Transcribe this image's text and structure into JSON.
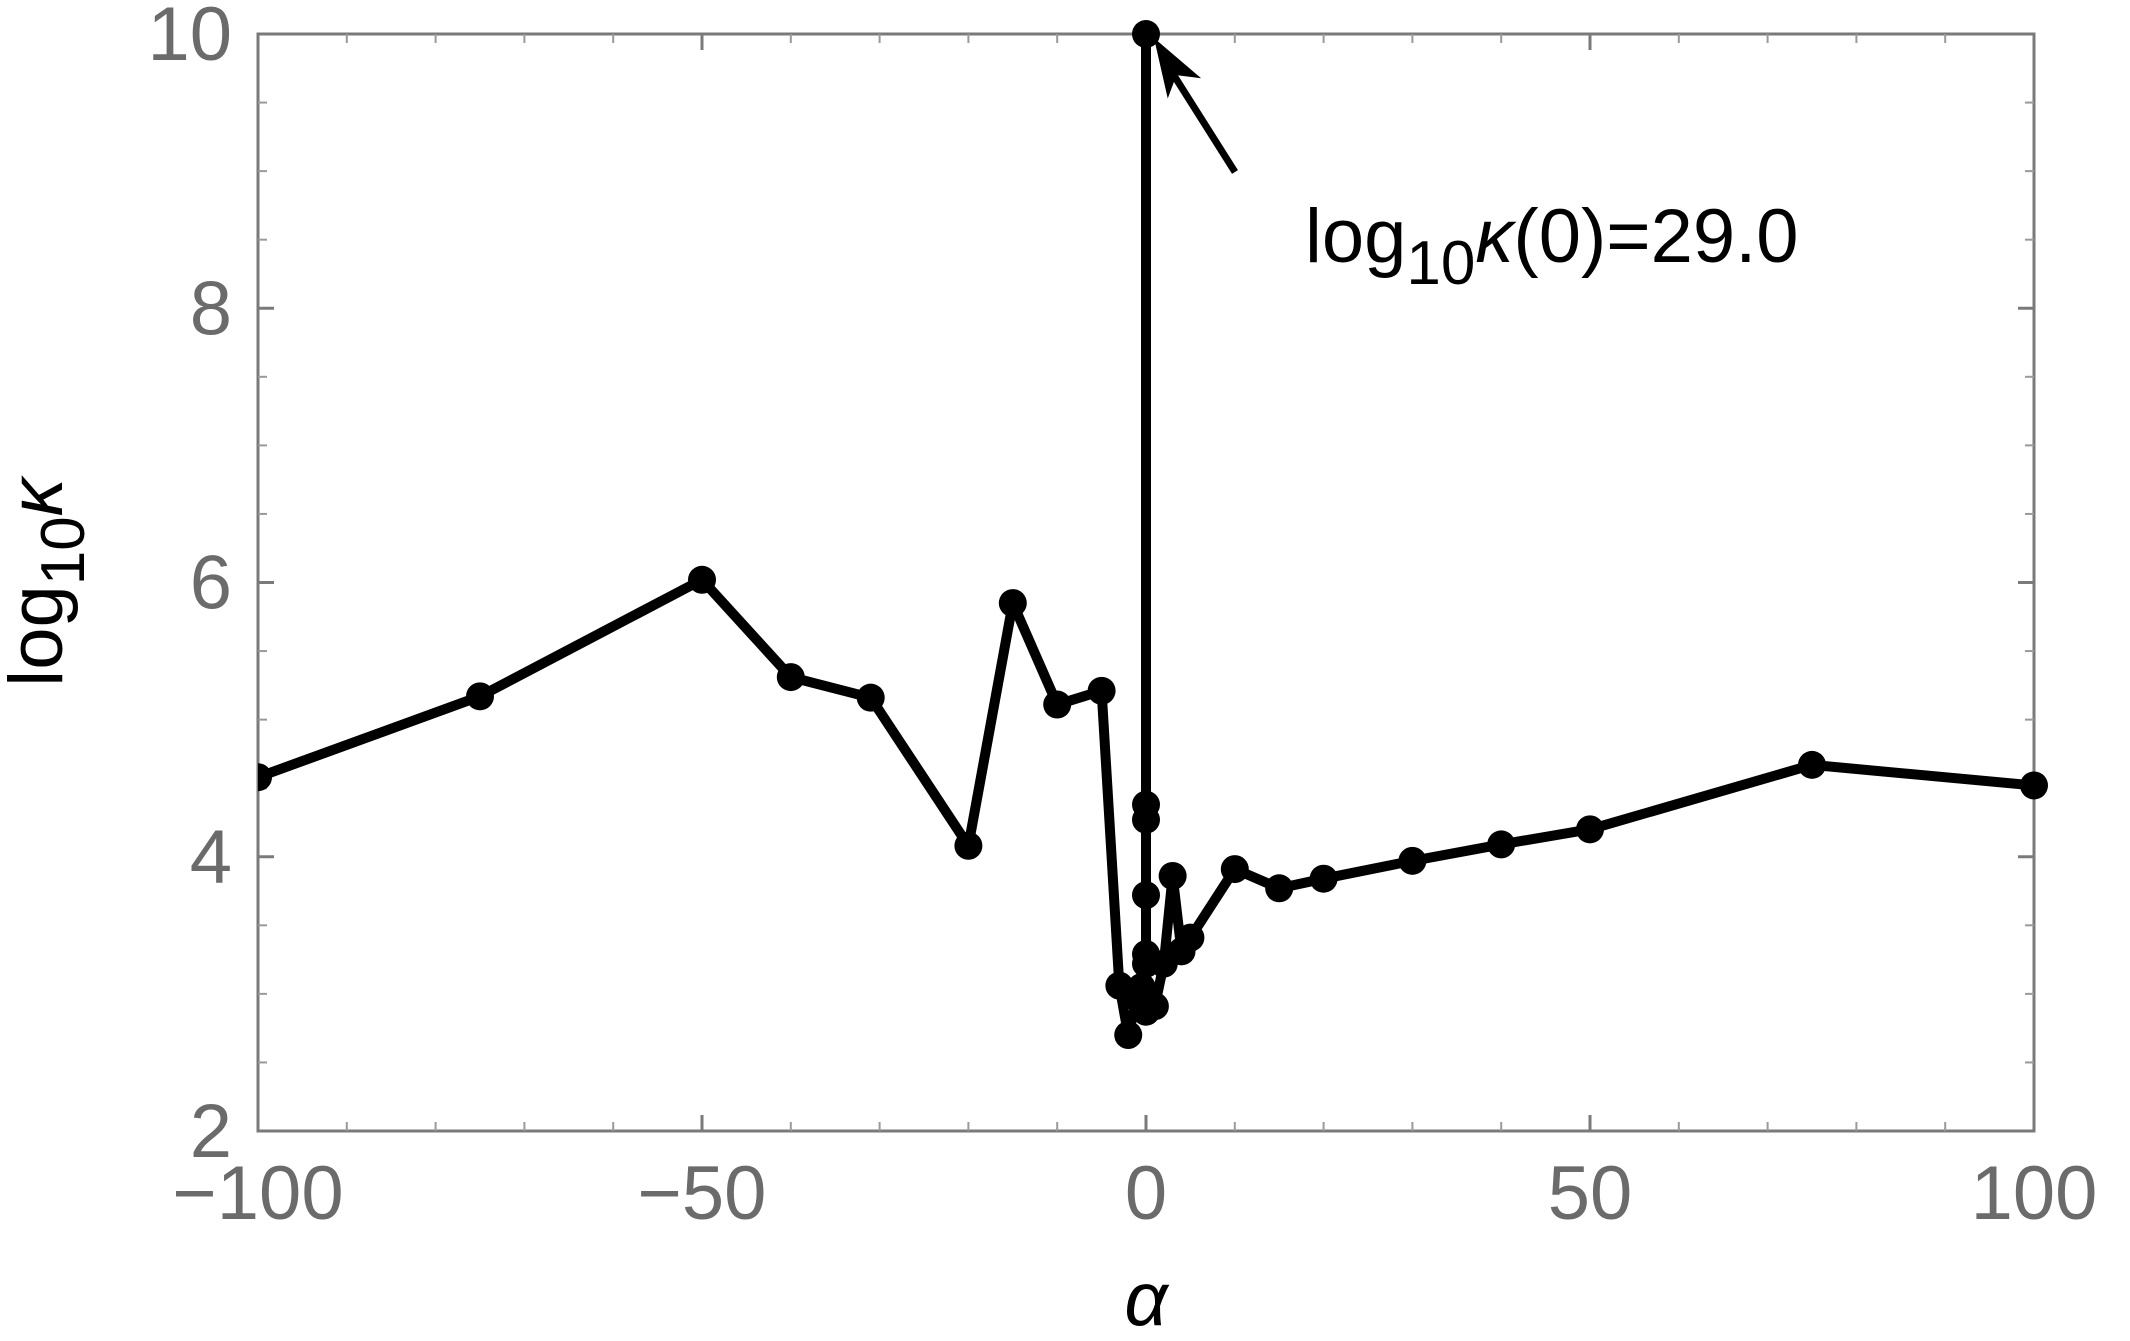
{
  "chart_data": {
    "type": "line",
    "title": "",
    "xlabel": "α",
    "ylabel_parts": {
      "base": "log",
      "sub": "10",
      "symbol": "κ"
    },
    "xlim": [
      -100,
      100
    ],
    "ylim": [
      2,
      10
    ],
    "x_ticks": [
      {
        "value": -100,
        "label": "−100"
      },
      {
        "value": -50,
        "label": "−50"
      },
      {
        "value": 0,
        "label": "0"
      },
      {
        "value": 50,
        "label": "50"
      },
      {
        "value": 100,
        "label": "100"
      }
    ],
    "y_ticks": [
      {
        "value": 2,
        "label": "2"
      },
      {
        "value": 4,
        "label": "4"
      },
      {
        "value": 6,
        "label": "6"
      },
      {
        "value": 8,
        "label": "8"
      },
      {
        "value": 10,
        "label": "10"
      }
    ],
    "grid": false,
    "series": [
      {
        "color": "#000000",
        "points": [
          [
            -100,
            4.58
          ],
          [
            -75,
            5.17
          ],
          [
            -50,
            6.02
          ],
          [
            -40,
            5.31
          ],
          [
            -31,
            5.16
          ],
          [
            -20,
            4.08
          ],
          [
            -15,
            5.85
          ],
          [
            -10,
            5.11
          ],
          [
            -5,
            5.21
          ],
          [
            -3,
            3.06
          ],
          [
            -2,
            2.7
          ],
          [
            -1,
            2.97
          ],
          [
            -0.5,
            3.05
          ],
          [
            0,
            3.29
          ],
          [
            0,
            3.72
          ],
          [
            0,
            4.27
          ],
          [
            0,
            4.38
          ],
          [
            0,
            10.0
          ],
          [
            0,
            3.22
          ],
          [
            0,
            2.87
          ],
          [
            1,
            2.91
          ],
          [
            2,
            3.22
          ],
          [
            3,
            3.86
          ],
          [
            4,
            3.31
          ],
          [
            5,
            3.41
          ],
          [
            10,
            3.91
          ],
          [
            15,
            3.77
          ],
          [
            20,
            3.84
          ],
          [
            30,
            3.97
          ],
          [
            40,
            4.09
          ],
          [
            50,
            4.2
          ],
          [
            75,
            4.67
          ],
          [
            100,
            4.52
          ]
        ]
      }
    ],
    "annotation": {
      "text_parts": {
        "base": "log",
        "sub": "10",
        "symbol": "κ",
        "rest": "(0)=29.0"
      },
      "points_to": [
        0,
        10
      ]
    }
  }
}
